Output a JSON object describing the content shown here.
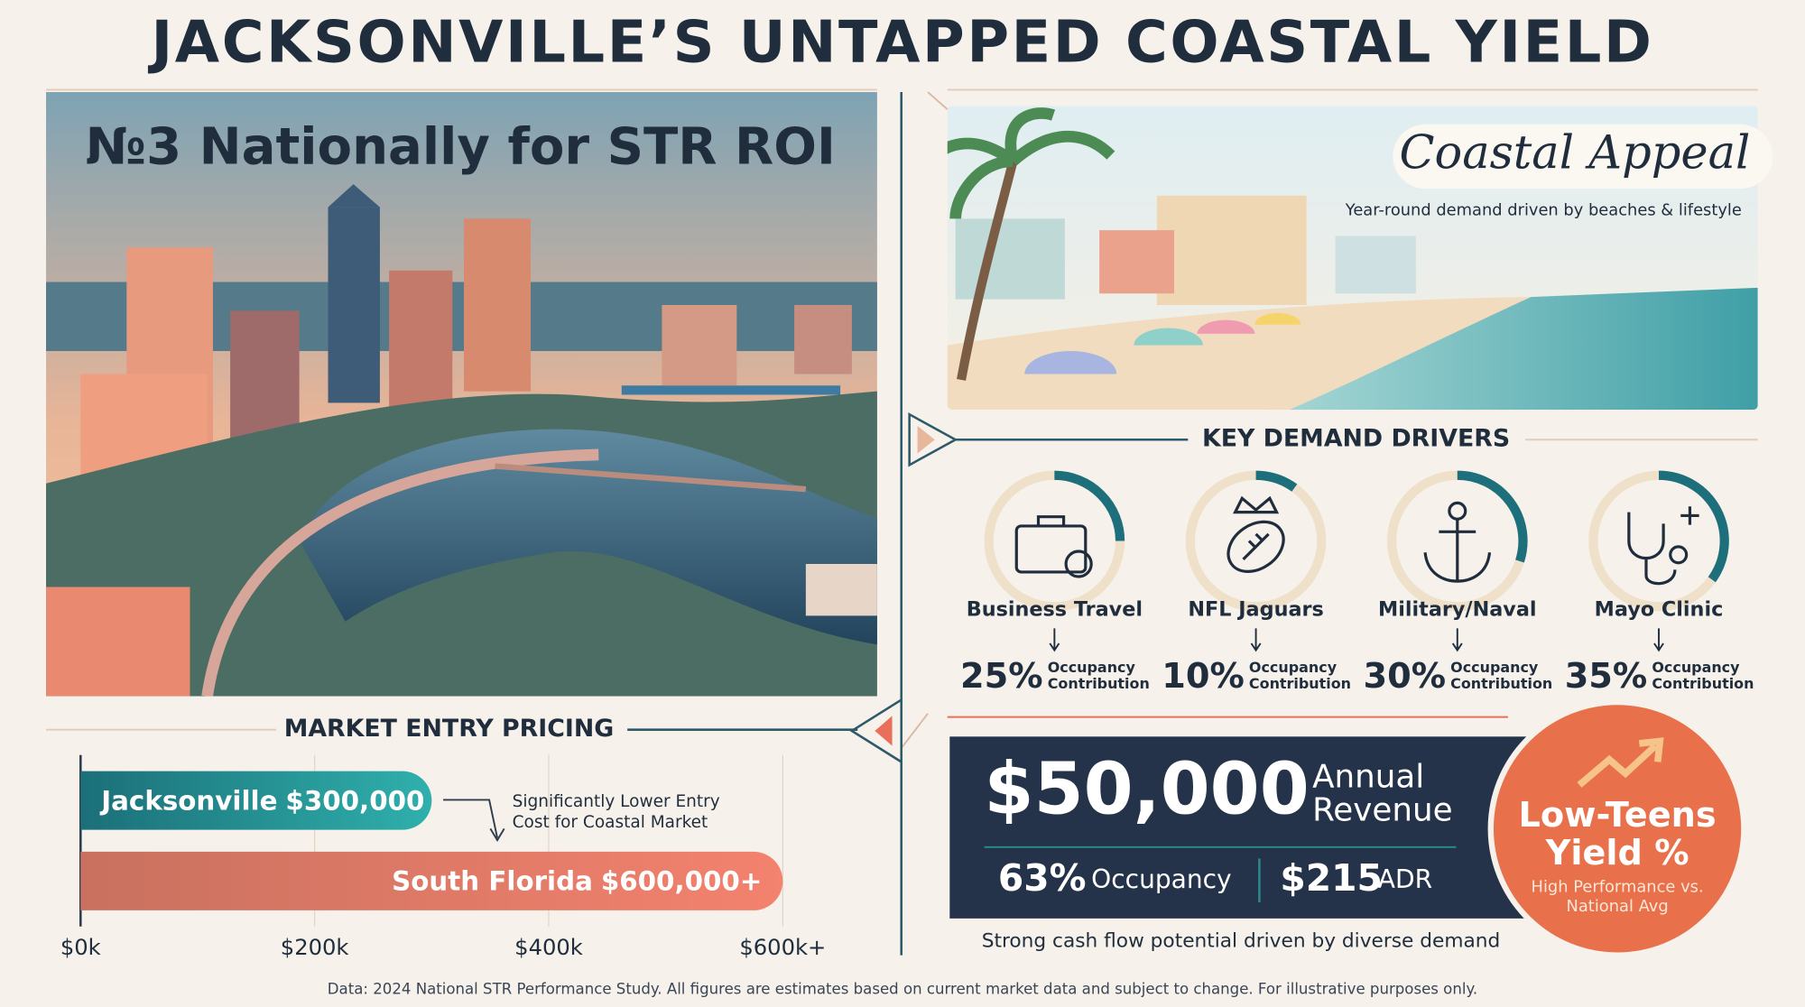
{
  "title": "JACKSONVILLE’S UNTAPPED COASTAL YIELD",
  "hero": {
    "headline": "№3 Nationally for STR ROI"
  },
  "coastal": {
    "title": "Coastal Appeal",
    "subtitle": "Year-round demand driven by beaches & lifestyle"
  },
  "chart_data": [
    {
      "type": "bar",
      "orientation": "horizontal",
      "title": "MARKET ENTRY PRICING",
      "categories": [
        "Jacksonville",
        "South Florida"
      ],
      "values": [
        300000,
        600000
      ],
      "value_labels": [
        "$300,000",
        "$600,000+"
      ],
      "colors": [
        "#1f8a8f",
        "#e8705a"
      ],
      "xlim": [
        0,
        600000
      ],
      "xticks": [
        {
          "value": 0,
          "label": "$0k"
        },
        {
          "value": 200000,
          "label": "$200k"
        },
        {
          "value": 400000,
          "label": "$400k"
        },
        {
          "value": 600000,
          "label": "$600k+"
        }
      ],
      "grid": true,
      "annotation": "Significantly Lower Entry Cost for Coastal Market"
    },
    {
      "type": "gauge",
      "title": "KEY DEMAND DRIVERS",
      "categories": [
        "Business Travel",
        "NFL Jaguars",
        "Military/Naval",
        "Mayo Clinic"
      ],
      "values": [
        25,
        10,
        30,
        35
      ],
      "value_labels": [
        "25%",
        "10%",
        "30%",
        "35%"
      ],
      "caption": "Occupancy Contribution",
      "ylim": [
        0,
        100
      ],
      "color": "#1d6f7c"
    }
  ],
  "kpis": {
    "revenue": "$50,000",
    "revenue_label": "Annual Revenue",
    "occupancy": "63%",
    "occupancy_label": "Occupancy",
    "adr": "$215",
    "adr_label": "ADR",
    "yield_title": "Low-Teens Yield %",
    "yield_subtitle": "High Performance vs. National Avg",
    "tagline": "Strong cash flow potential driven by diverse demand"
  },
  "footer": "Data: 2024 National STR Performance Study. All figures are estimates based on current market data and subject to change. For illustrative purposes only."
}
